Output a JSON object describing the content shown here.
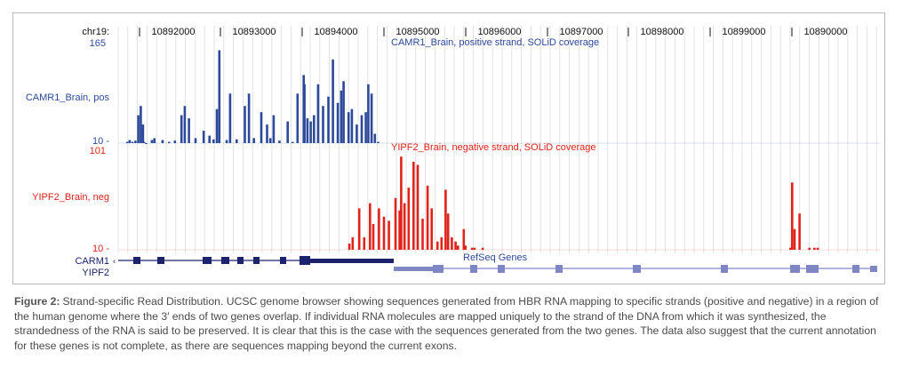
{
  "colors": {
    "positive": "#2d4a9a",
    "negative": "#e0231b",
    "gene": "#1a236b",
    "gene_light": "#7f86c4",
    "grid": "#dcdcdc",
    "axis": "#444444"
  },
  "browser": {
    "chrom_label": "chr19:",
    "ticks": [
      "10892000",
      "10893000",
      "10894000",
      "10895000",
      "10896000",
      "10897000",
      "10898000",
      "10899000",
      "10890000"
    ]
  },
  "tracks": {
    "positive": {
      "title": "CAMR1_Brain, positive strand, SOLiD coverage",
      "label": "CAMR1_Brain, pos",
      "ymax_label": "165",
      "ymin_label": "10 -"
    },
    "negative": {
      "title": "YIPF2_Brain, negative strand, SOLiD coverage",
      "label": "YIPF2_Brain, neg",
      "ymax_label": "101",
      "ymin_label": "10 -"
    }
  },
  "genes": {
    "track_title": "RefSeq Genes",
    "gene1": "CARM1",
    "gene2": "YIPF2"
  },
  "caption": {
    "label": "Figure 2:",
    "text": "Strand-specific Read Distribution. UCSC genome browser showing sequences generated from HBR RNA mapping to specific strands (positive and negative) in a region of the human genome where the 3′ ends of two genes overlap. If individual RNA molecules are mapped uniquely to the strand of the DNA from which it was synthesized, the strandedness of the RNA is said to be preserved. It is clear that this is the case with the sequences generated from the two genes. The data also suggest that the current annotation for these genes is not complete, as there are sequences mapping beyond the current exons."
  },
  "chart_data": [
    {
      "type": "area",
      "track": "positive",
      "ylim": [
        10,
        165
      ],
      "x": [
        "10891770",
        "10891800",
        "10891835",
        "10891870",
        "10891905",
        "10891935",
        "10891962",
        "10891975",
        "10892000",
        "10892070",
        "10892100",
        "10892200",
        "10892280",
        "10892350",
        "10892430",
        "10892470",
        "10892520",
        "10892600",
        "10892700",
        "10892770",
        "10892820",
        "10892860",
        "10892890",
        "10892980",
        "10893020",
        "10893100",
        "10893200",
        "10893250",
        "10893310",
        "10893400",
        "10893470",
        "10893510",
        "10893550",
        "10893620",
        "10893720",
        "10893780",
        "10893840",
        "10893915",
        "10893925",
        "10893960",
        "10894000",
        "10894040",
        "10894090",
        "10894150",
        "10894215",
        "10894270",
        "10894330",
        "10894370",
        "10894400",
        "10894460",
        "10894500",
        "10894560",
        "10894620",
        "10894670",
        "10894700",
        "10894740",
        "10894780",
        "10894820"
      ],
      "y": [
        12,
        15,
        12,
        14,
        55,
        70,
        40,
        12,
        10,
        15,
        18,
        15,
        12,
        14,
        55,
        70,
        50,
        18,
        30,
        22,
        16,
        65,
        160,
        15,
        90,
        16,
        70,
        90,
        18,
        60,
        40,
        18,
        55,
        14,
        45,
        12,
        90,
        120,
        105,
        50,
        45,
        55,
        105,
        70,
        85,
        145,
        75,
        95,
        110,
        60,
        65,
        40,
        55,
        60,
        105,
        90,
        25,
        12
      ]
    },
    {
      "type": "area",
      "track": "negative",
      "ylim": [
        10,
        101
      ],
      "x": [
        "10894470",
        "10894510",
        "10894590",
        "10894650",
        "10894720",
        "10894760",
        "10894830",
        "10894890",
        "10894950",
        "10895030",
        "10895080",
        "10895100",
        "10895140",
        "10895190",
        "10895250",
        "10895300",
        "10895360",
        "10895420",
        "10895470",
        "10895540",
        "10895590",
        "10895640",
        "10895670",
        "10895715",
        "10895760",
        "10895790",
        "10895860",
        "10895880",
        "10895960",
        "10895990",
        "10896090",
        "10899830",
        "10899850",
        "10899880",
        "10899940",
        "10900060",
        "10900120",
        "10900160"
      ],
      "y": [
        16,
        22,
        50,
        22,
        55,
        35,
        50,
        42,
        38,
        60,
        48,
        100,
        55,
        70,
        95,
        92,
        40,
        72,
        50,
        18,
        22,
        68,
        45,
        22,
        18,
        14,
        30,
        14,
        12,
        12,
        12,
        12,
        75,
        30,
        45,
        12,
        12,
        12
      ]
    }
  ]
}
